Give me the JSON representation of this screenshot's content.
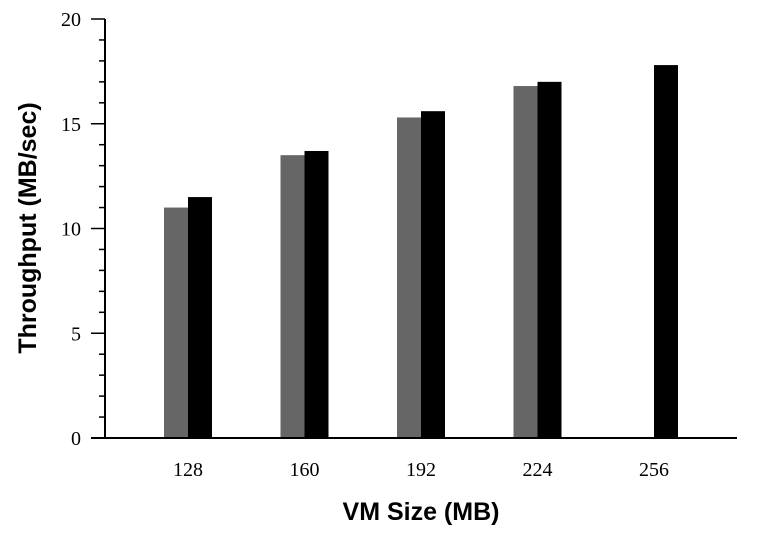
{
  "chart_data": {
    "type": "bar",
    "title": "",
    "xlabel": "VM Size (MB)",
    "ylabel": "Throughput (MB/sec)",
    "categories": [
      "128",
      "160",
      "192",
      "224",
      "256"
    ],
    "series": [
      {
        "values": [
          11.0,
          13.5,
          15.3,
          16.8,
          null
        ],
        "color": "#666666"
      },
      {
        "values": [
          11.5,
          13.7,
          15.6,
          17.0,
          17.8
        ],
        "color": "#000000"
      }
    ],
    "ylim": [
      0,
      20
    ],
    "yticks": [
      0,
      5,
      10,
      15,
      20
    ],
    "y_minor_step": 1,
    "grid": false,
    "legend": "none"
  }
}
